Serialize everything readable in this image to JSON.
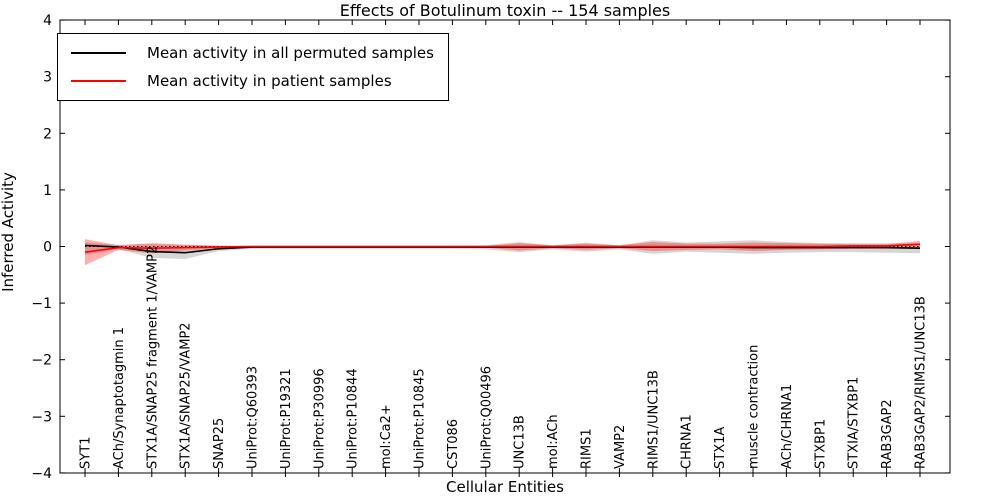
{
  "figure": {
    "title": "Effects of Botulinum toxin -- 154 samples",
    "xlabel": "Cellular Entities",
    "ylabel": "Inferred Activity"
  },
  "legend": {
    "position": "upper left",
    "items": [
      {
        "label": "Mean activity in all permuted samples",
        "color": "#000000"
      },
      {
        "label": "Mean activity in patient samples",
        "color": "#ff0000"
      }
    ]
  },
  "chart_data": {
    "type": "line",
    "title": "Effects of Botulinum toxin -- 154 samples",
    "xlabel": "Cellular Entities",
    "ylabel": "Inferred Activity",
    "ylim": [
      -4,
      4
    ],
    "grid": false,
    "legend_position": "upper left",
    "y_ticks": [
      4,
      3,
      2,
      1,
      0,
      -1,
      -2,
      -3,
      -4
    ],
    "y_tick_labels": [
      "4",
      "3",
      "2",
      "1",
      "0",
      "−1",
      "−2",
      "−3",
      "−4"
    ],
    "categories": [
      "SYT1",
      "ACh/Synaptotagmin 1",
      "STX1A/SNAP25 fragment 1/VAMP2",
      "STX1A/SNAP25/VAMP2",
      "SNAP25",
      "UniProt:Q60393",
      "UniProt:P19321",
      "UniProt:P30996",
      "UniProt:P10844",
      "mol:Ca2+",
      "UniProt:P10845",
      "CST086",
      "UniProt:Q00496",
      "UNC13B",
      "mol:ACh",
      "RIMS1",
      "VAMP2",
      "RIMS1/UNC13B",
      "CHRNA1",
      "STX1A",
      "muscle contraction",
      "ACh/CHRNA1",
      "STXBP1",
      "STXIA/STXBP1",
      "RAB3GAP2",
      "RAB3GAP2/RIMS1/UNC13B"
    ],
    "reference_line": {
      "y": 0,
      "style": "dotted",
      "color": "#000000"
    },
    "series": [
      {
        "name": "Mean activity in all permuted samples",
        "color": "#000000",
        "band_color": "#808080",
        "band_opacity": 0.32,
        "values": [
          0.02,
          -0.01,
          -0.09,
          -0.11,
          -0.04,
          -0.01,
          -0.01,
          -0.01,
          -0.01,
          -0.01,
          -0.01,
          -0.01,
          -0.01,
          -0.01,
          -0.01,
          -0.01,
          -0.01,
          -0.01,
          -0.01,
          -0.01,
          -0.02,
          -0.02,
          -0.02,
          -0.02,
          -0.02,
          -0.03
        ],
        "band_upper": [
          0.07,
          0.03,
          0.04,
          0.03,
          0.02,
          0.015,
          0.015,
          0.015,
          0.015,
          0.015,
          0.015,
          0.015,
          0.02,
          0.08,
          0.02,
          0.07,
          0.02,
          0.11,
          0.07,
          0.09,
          0.11,
          0.08,
          0.06,
          0.06,
          0.06,
          0.05
        ],
        "band_lower": [
          -0.15,
          -0.05,
          -0.2,
          -0.22,
          -0.08,
          -0.04,
          -0.04,
          -0.04,
          -0.04,
          -0.04,
          -0.04,
          -0.04,
          -0.05,
          -0.1,
          -0.05,
          -0.09,
          -0.05,
          -0.13,
          -0.09,
          -0.11,
          -0.13,
          -0.11,
          -0.1,
          -0.1,
          -0.11,
          -0.12
        ]
      },
      {
        "name": "Mean activity in patient samples",
        "color": "#ff0000",
        "band_color": "#ff0000",
        "band_opacity": 0.32,
        "values": [
          -0.1,
          -0.02,
          -0.03,
          -0.02,
          -0.01,
          0.0,
          0.0,
          0.0,
          0.0,
          0.0,
          0.0,
          0.0,
          0.0,
          0.0,
          0.0,
          0.0,
          0.0,
          0.0,
          0.0,
          0.0,
          0.0,
          0.0,
          0.0,
          0.01,
          0.01,
          0.04
        ],
        "band_upper": [
          0.13,
          0.02,
          0.06,
          0.03,
          0.01,
          0.01,
          0.01,
          0.01,
          0.01,
          0.01,
          0.01,
          0.01,
          0.01,
          0.06,
          0.02,
          0.05,
          0.02,
          0.08,
          0.05,
          0.05,
          0.07,
          0.06,
          0.05,
          0.04,
          0.04,
          0.1
        ],
        "band_lower": [
          -0.33,
          -0.06,
          -0.12,
          -0.07,
          -0.03,
          -0.02,
          -0.02,
          -0.02,
          -0.02,
          -0.02,
          -0.02,
          -0.02,
          -0.02,
          -0.07,
          -0.03,
          -0.06,
          -0.03,
          -0.08,
          -0.06,
          -0.05,
          -0.08,
          -0.06,
          -0.05,
          -0.04,
          -0.04,
          -0.02
        ]
      }
    ]
  }
}
